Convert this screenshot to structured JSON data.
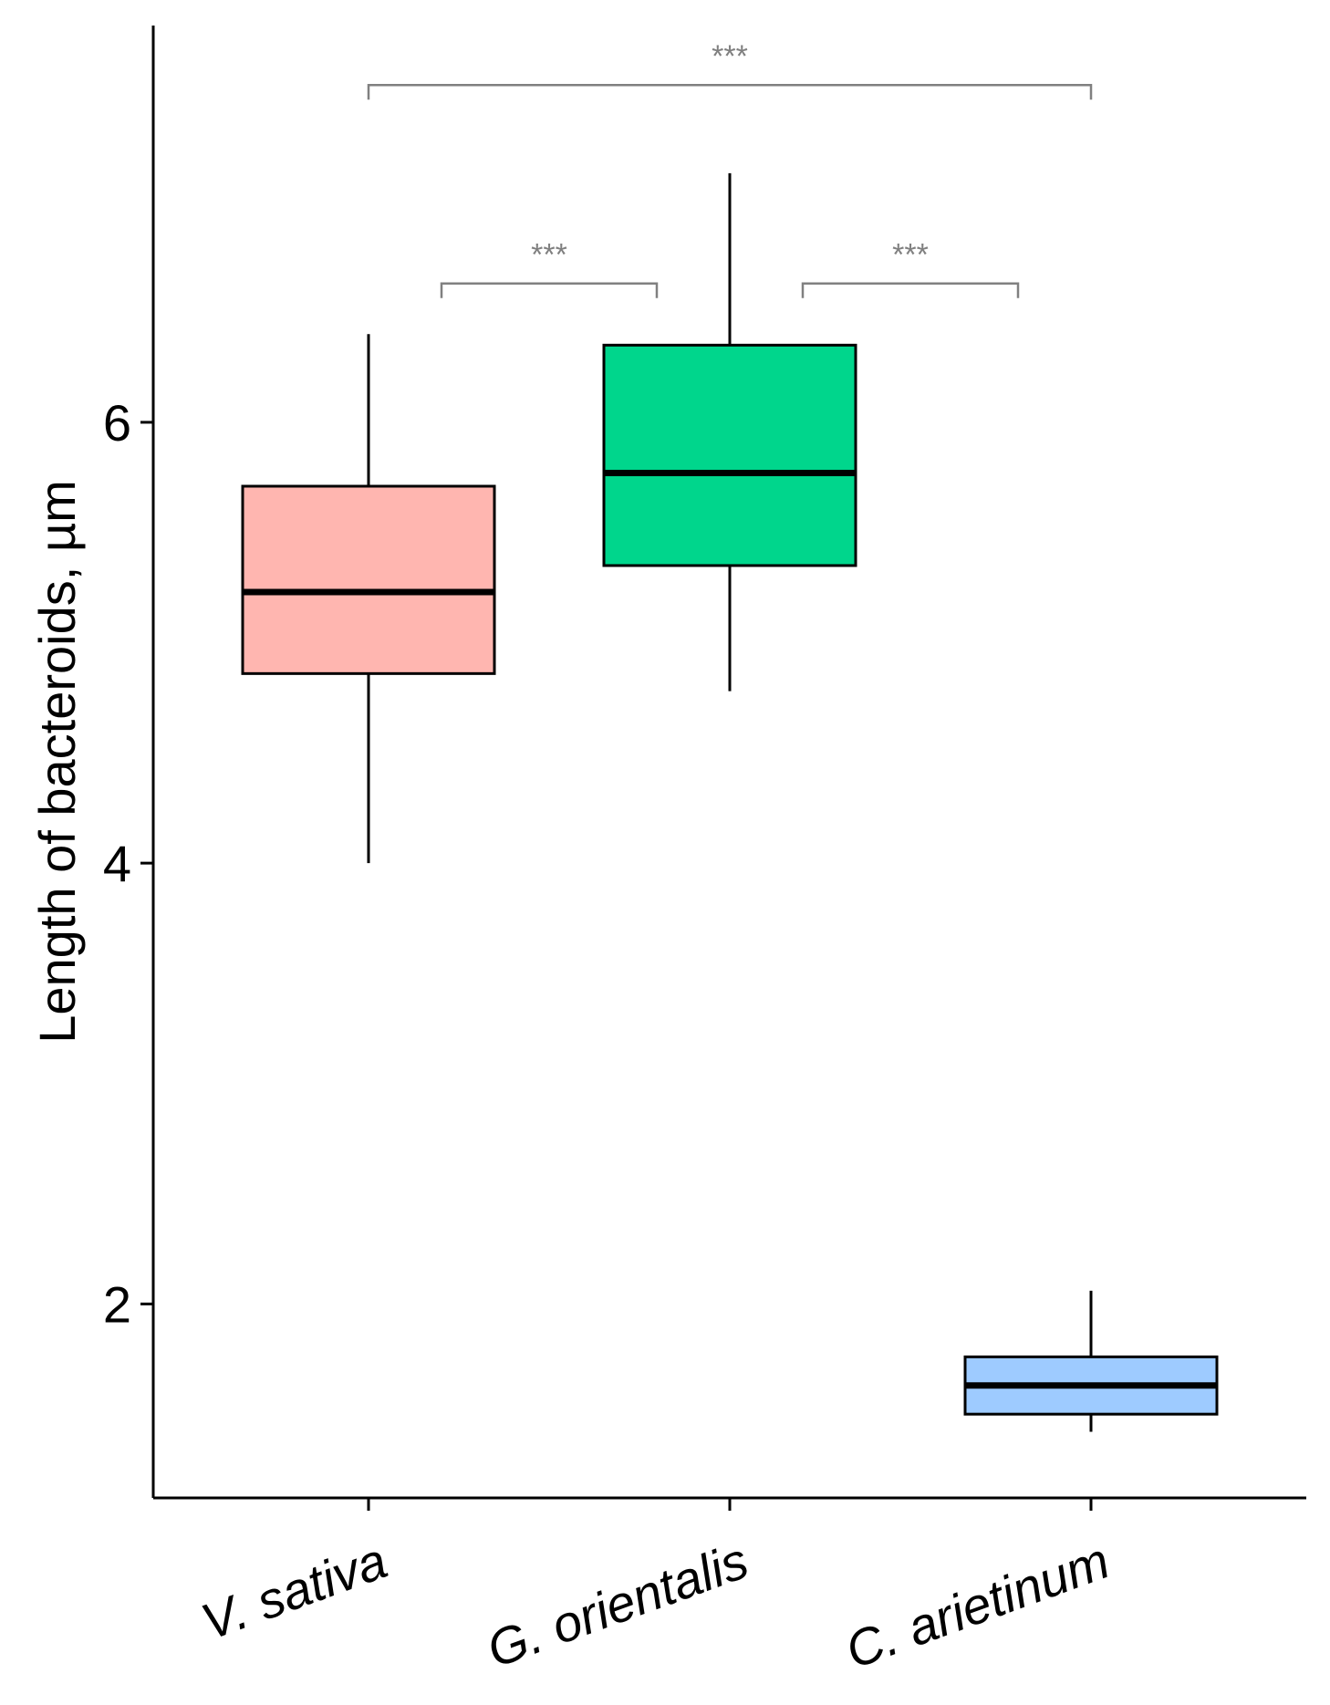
{
  "chart_data": {
    "type": "boxplot",
    "title": "",
    "xlabel": "",
    "ylabel": "Length of bacteroids, µm",
    "ylim": [
      1.12,
      7.8
    ],
    "yticks": [
      2,
      4,
      6
    ],
    "ytick_labels": [
      "2",
      "4",
      "6"
    ],
    "grid": false,
    "legend": "none",
    "categories": [
      "V. sativa",
      "G. orientalis",
      "C. arietinum"
    ],
    "series": [
      {
        "name": "V. sativa",
        "min": 4.0,
        "q1": 4.86,
        "median": 5.23,
        "q3": 5.71,
        "max": 6.4,
        "color": "#FFB6B0"
      },
      {
        "name": "G. orientalis",
        "min": 4.78,
        "q1": 5.35,
        "median": 5.77,
        "q3": 6.35,
        "max": 7.13,
        "color": "#00D68C"
      },
      {
        "name": "C. arietinum",
        "min": 1.42,
        "q1": 1.5,
        "median": 1.63,
        "q3": 1.76,
        "max": 2.06,
        "color": "#9ECBFF"
      }
    ],
    "annotations": [
      {
        "from": "V. sativa",
        "to": "C. arietinum",
        "label": "***",
        "y": 7.53
      },
      {
        "from": "V. sativa",
        "to": "G. orientalis",
        "label": "***",
        "y": 6.63
      },
      {
        "from": "G. orientalis",
        "to": "C. arietinum",
        "label": "***",
        "y": 6.63
      }
    ]
  }
}
